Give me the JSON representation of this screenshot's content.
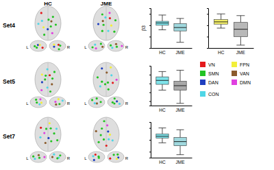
{
  "figure": {
    "column_labels": [
      "HC",
      "JME"
    ],
    "row_labels": [
      "Set4",
      "Set5",
      "Set7"
    ],
    "side_labels": [
      "L",
      "R"
    ],
    "network_legend": [
      {
        "name": "VN",
        "color": "#e41a1c"
      },
      {
        "name": "SMN",
        "color": "#22c322"
      },
      {
        "name": "DAN",
        "color": "#1f3fbf"
      },
      {
        "name": "CON",
        "color": "#4fd6e6"
      },
      {
        "name": "FPN",
        "color": "#f2ef3a"
      },
      {
        "name": "VAN",
        "color": "#8b5a2b"
      },
      {
        "name": "DMN",
        "color": "#e040e0"
      }
    ]
  },
  "chart_data": [
    {
      "type": "box",
      "ylabel": "β3",
      "categories": [
        "HC",
        "JME"
      ],
      "colors": [
        "#7fe3ea",
        "#9fd8de"
      ],
      "stats": [
        {
          "min": -0.08,
          "q1": 0.0,
          "median": 0.04,
          "q3": 0.07,
          "max": 0.18
        },
        {
          "min": -0.3,
          "q1": -0.1,
          "median": -0.04,
          "q3": 0.03,
          "max": 0.12
        }
      ],
      "ylim": [
        -0.4,
        0.3
      ],
      "yticks": [
        -0.4,
        -0.2,
        0,
        0.2
      ],
      "tick_labels": "x"
    },
    {
      "type": "box",
      "categories": [
        "HC",
        "JME"
      ],
      "colors": [
        "#f4f06a",
        "#b8b8b8"
      ],
      "stats": [
        {
          "min": -0.05,
          "q1": 0.02,
          "median": 0.06,
          "q3": 0.1,
          "max": 0.2
        },
        {
          "min": -0.35,
          "q1": -0.2,
          "median": -0.07,
          "q3": 0.05,
          "max": 0.17
        }
      ],
      "ylim": [
        -0.4,
        0.3
      ],
      "yticks": [
        -0.4,
        -0.2,
        0,
        0.2
      ],
      "tick_labels": "x"
    },
    {
      "type": "box",
      "categories": [
        "HC",
        "JME"
      ],
      "colors": [
        "#7fe3ea",
        "#a8a8a8"
      ],
      "stats": [
        {
          "min": -0.15,
          "q1": -0.02,
          "median": 0.07,
          "q3": 0.15,
          "max": 0.27
        },
        {
          "min": -0.45,
          "q1": -0.15,
          "median": -0.05,
          "q3": 0.05,
          "max": 0.3
        }
      ],
      "ylim": [
        -0.5,
        0.4
      ],
      "yticks": [
        -0.4,
        -0.2,
        0,
        0.2,
        0.4
      ],
      "tick_labels": "x"
    },
    {
      "type": "box",
      "categories": [
        "HC",
        "JME"
      ],
      "colors": [
        "#7fe3ea",
        "#9fd8de"
      ],
      "stats": [
        {
          "min": -0.05,
          "q1": 0.03,
          "median": 0.06,
          "q3": 0.1,
          "max": 0.2
        },
        {
          "min": -0.25,
          "q1": -0.1,
          "median": -0.03,
          "q3": 0.04,
          "max": 0.17
        }
      ],
      "ylim": [
        -0.3,
        0.3
      ],
      "yticks": [
        -0.2,
        0,
        0.2
      ],
      "tick_labels": "x"
    }
  ]
}
